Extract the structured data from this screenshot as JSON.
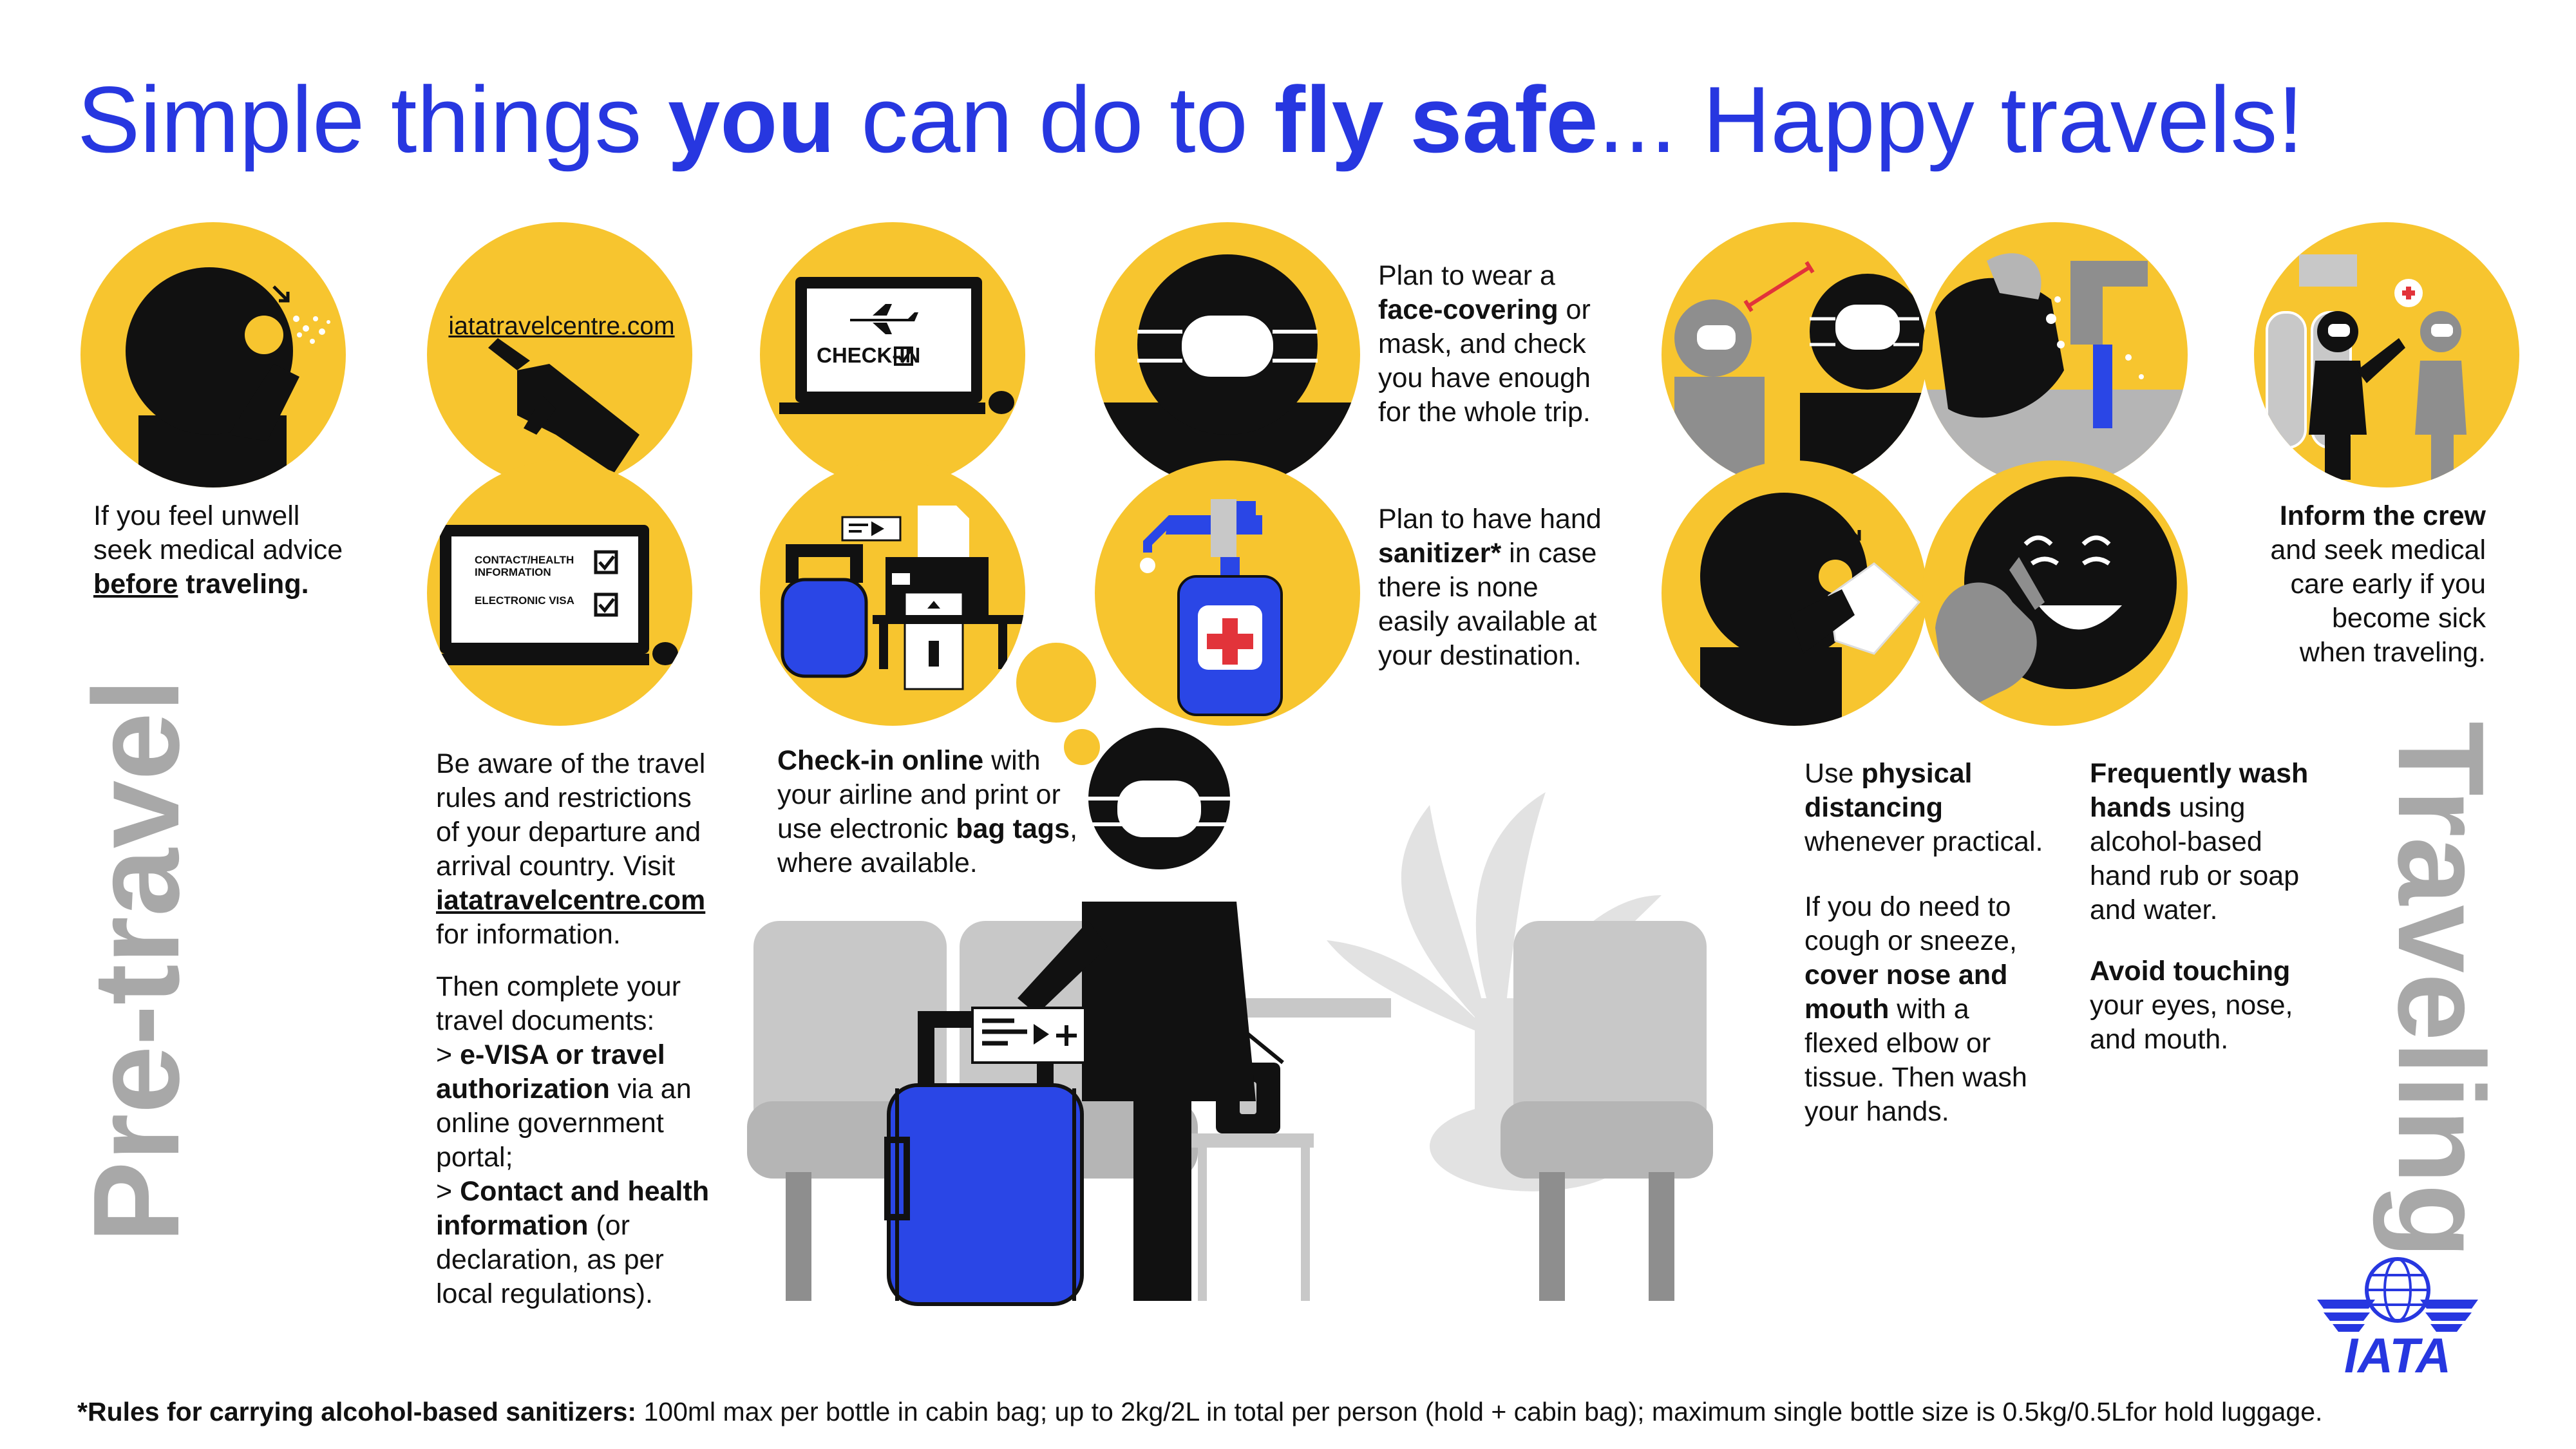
{
  "headline": {
    "part1": "Simple things ",
    "you": "you",
    "part2": " can do to ",
    "fly_safe": "fly safe",
    "part3": "... Happy travels!"
  },
  "sections": {
    "pre_travel": "Pre-travel",
    "traveling": "Traveling"
  },
  "pretravel": {
    "unwell": {
      "l1": "If you feel unwell",
      "l2": "seek medical advice",
      "before": "before",
      "l3_rest": " traveling."
    },
    "website_icon_text": "iatatravelcentre.com",
    "form_icon": {
      "row1": "CONTACT/HEALTH INFORMATION",
      "row2": "ELECTRONIC VISA"
    },
    "checkin_icon_text": "CHECK-IN",
    "rules": {
      "p1_l1": "Be aware of the travel",
      "p1_l2": "rules and restrictions",
      "p1_l3": "of your departure and",
      "p1_l4": "arrival country. Visit",
      "p1_link": "iatatravelcentre.com",
      "p1_l6": "for information.",
      "p2_l1": "Then complete your",
      "p2_l2": "travel documents:",
      "p2_evisa_prefix": "> ",
      "p2_evisa_b1": "e-VISA or travel",
      "p2_evisa_b2": "authorization",
      "p2_evisa_rest": " via an",
      "p2_l5": "online government",
      "p2_l6": "portal;",
      "p2_contact_prefix": "> ",
      "p2_contact_b": "Contact and health",
      "p2_contact_b2": "information",
      "p2_contact_rest": " (or",
      "p2_l9": "declaration, as per",
      "p2_l10": "local regulations)."
    },
    "checkin": {
      "b1": "Check-in online",
      "r1": " with",
      "l2": "your airline and print or",
      "l3": "use electronic ",
      "b3": "bag tags",
      "r3": ",",
      "l4": "where available."
    },
    "mask": {
      "l1": "Plan to wear a",
      "b2": "face-covering",
      "r2": " or",
      "l3": "mask, and check",
      "l4": "you have enough",
      "l5": "for the whole trip."
    },
    "sanitizer": {
      "l1": "Plan to have hand",
      "b2": "sanitizer*",
      "r2": " in case",
      "l3": "there is none",
      "l4": "easily available at",
      "l5": "your destination."
    }
  },
  "traveling": {
    "distancing": {
      "l1a": "Use ",
      "b1": "physical",
      "b2": "distancing",
      "l3": "whenever practical."
    },
    "cough": {
      "l1": "If you do need to",
      "l2": "cough or sneeze,",
      "b3": "cover nose and",
      "b4": "mouth",
      "r4": " with a",
      "l5": "flexed elbow or",
      "l6": "tissue. Then wash",
      "l7": "your hands."
    },
    "wash": {
      "b1": "Frequently wash",
      "b2": "hands",
      "r2": " using",
      "l3": "alcohol-based",
      "l4": "hand rub or soap",
      "l5": "and water."
    },
    "touch": {
      "b1": "Avoid touching",
      "l2": "your eyes, nose,",
      "l3": "and mouth."
    },
    "crew": {
      "b1": "Inform the crew",
      "l2": "and seek medical",
      "l3": "care early if you",
      "l4": "become sick",
      "l5": "when traveling."
    }
  },
  "footnote": {
    "bold": "*Rules for carrying alcohol-based sanitizers:",
    "rest": " 100ml max per bottle in cabin bag; up to 2kg/2L in total per person (hold + cabin bag); maximum single  bottle size is 0.5kg/0.5Lfor hold luggage."
  },
  "logo": {
    "text": "IATA"
  },
  "colors": {
    "yellow": "#f7c52f",
    "blue": "#2737e0",
    "luggage_blue": "#2a46e6",
    "black": "#111111",
    "gray": "#a8a8a8",
    "light_gray": "#c8c8c8",
    "red": "#e2333a"
  }
}
